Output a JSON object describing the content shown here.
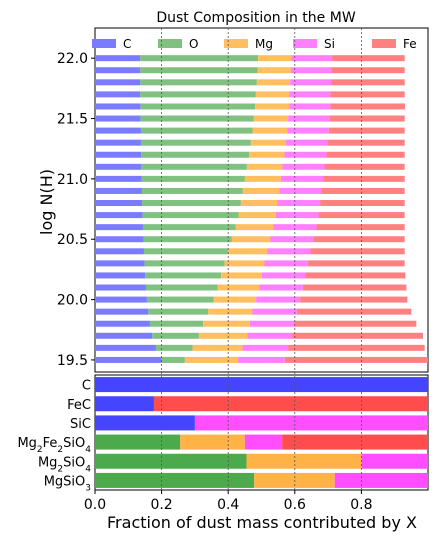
{
  "chart_data": [
    {
      "type": "bar",
      "orientation": "horizontal-stacked",
      "title": "Dust Composition in the MW",
      "ylabel": "log N(H)",
      "xlim": [
        0,
        1
      ],
      "ylim": [
        19.4,
        22.25
      ],
      "yticks": [
        "22.0",
        "21.5",
        "21.0",
        "20.5",
        "20.0",
        "19.5"
      ],
      "grid": "vertical dotted lines at x = 0.2, 0.4, 0.6, 0.8",
      "legend_position": "top",
      "legend": [
        {
          "name": "C",
          "color": "#7b7bff"
        },
        {
          "name": "O",
          "color": "#80c080"
        },
        {
          "name": "Mg",
          "color": "#ffbf60"
        },
        {
          "name": "Si",
          "color": "#ff80ff"
        },
        {
          "name": "Fe",
          "color": "#ff8080"
        }
      ],
      "y": [
        22.0,
        21.9,
        21.8,
        21.7,
        21.6,
        21.5,
        21.4,
        21.3,
        21.2,
        21.1,
        21.0,
        20.9,
        20.8,
        20.7,
        20.6,
        20.5,
        20.4,
        20.3,
        20.2,
        20.1,
        20.0,
        19.9,
        19.8,
        19.7,
        19.6,
        19.5
      ],
      "series": [
        {
          "name": "C",
          "values": [
            0.136,
            0.136,
            0.136,
            0.136,
            0.137,
            0.137,
            0.138,
            0.138,
            0.139,
            0.139,
            0.14,
            0.141,
            0.142,
            0.143,
            0.144,
            0.146,
            0.147,
            0.149,
            0.151,
            0.153,
            0.156,
            0.16,
            0.165,
            0.172,
            0.183,
            0.2
          ]
        },
        {
          "name": "O",
          "values": [
            0.354,
            0.352,
            0.35,
            0.347,
            0.344,
            0.34,
            0.335,
            0.33,
            0.324,
            0.317,
            0.31,
            0.303,
            0.296,
            0.288,
            0.278,
            0.265,
            0.252,
            0.24,
            0.228,
            0.215,
            0.2,
            0.18,
            0.16,
            0.14,
            0.11,
            0.07
          ]
        },
        {
          "name": "Mg",
          "values": [
            0.1,
            0.1,
            0.1,
            0.101,
            0.102,
            0.103,
            0.104,
            0.105,
            0.106,
            0.107,
            0.108,
            0.109,
            0.11,
            0.112,
            0.114,
            0.116,
            0.118,
            0.12,
            0.122,
            0.125,
            0.128,
            0.133,
            0.14,
            0.145,
            0.15,
            0.16
          ]
        },
        {
          "name": "Si",
          "values": [
            0.122,
            0.122,
            0.123,
            0.123,
            0.124,
            0.124,
            0.125,
            0.125,
            0.126,
            0.126,
            0.127,
            0.127,
            0.128,
            0.128,
            0.129,
            0.129,
            0.13,
            0.13,
            0.131,
            0.131,
            0.132,
            0.133,
            0.134,
            0.135,
            0.137,
            0.14
          ]
        },
        {
          "name": "Fe",
          "values": [
            0.218,
            0.22,
            0.221,
            0.223,
            0.224,
            0.226,
            0.228,
            0.232,
            0.235,
            0.241,
            0.245,
            0.25,
            0.254,
            0.259,
            0.265,
            0.274,
            0.283,
            0.291,
            0.3,
            0.311,
            0.322,
            0.344,
            0.366,
            0.393,
            0.41,
            0.43
          ]
        }
      ]
    },
    {
      "type": "bar",
      "orientation": "horizontal-stacked",
      "xlabel": "Fraction of dust mass contributed by X",
      "xlim": [
        0,
        1
      ],
      "xticks": [
        "0.0",
        "0.2",
        "0.4",
        "0.6",
        "0.8"
      ],
      "categories": [
        {
          "key": "C",
          "base": "C",
          "sub": [
            "",
            "",
            ""
          ]
        },
        {
          "key": "FeC",
          "base": "FeC",
          "sub": [
            "",
            "",
            ""
          ]
        },
        {
          "key": "SiC",
          "base": "SiC",
          "sub": [
            "",
            "",
            ""
          ]
        },
        {
          "key": "Mg2Fe2SiO4",
          "base": "Mg",
          "sub": [
            "2",
            "Fe",
            "2",
            "SiO",
            "4"
          ]
        },
        {
          "key": "Mg2SiO4",
          "base": "Mg",
          "sub": [
            "2",
            "SiO",
            "4"
          ]
        },
        {
          "key": "MgSiO3",
          "base": "MgSiO",
          "sub": [
            "3"
          ]
        }
      ],
      "category_labels": [
        "C",
        "FeC",
        "SiC",
        "Mg2Fe2SiO4",
        "Mg2SiO4",
        "MgSiO3"
      ],
      "colors": {
        "C": "#4545ff",
        "O": "#4caa4c",
        "Mg": "#ffb347",
        "Si": "#ff4dff",
        "Fe": "#ff4d4d"
      },
      "series": [
        {
          "name": "C",
          "values": [
            1.0,
            0.177,
            0.3,
            0.0,
            0.0,
            0.0
          ]
        },
        {
          "name": "O",
          "values": [
            0.0,
            0.0,
            0.0,
            0.256,
            0.455,
            0.478
          ]
        },
        {
          "name": "Mg",
          "values": [
            0.0,
            0.0,
            0.0,
            0.194,
            0.346,
            0.242
          ]
        },
        {
          "name": "Si",
          "values": [
            0.0,
            0.0,
            0.7,
            0.112,
            0.199,
            0.28
          ]
        },
        {
          "name": "Fe",
          "values": [
            0.0,
            0.823,
            0.0,
            0.438,
            0.0,
            0.0
          ]
        }
      ]
    }
  ]
}
